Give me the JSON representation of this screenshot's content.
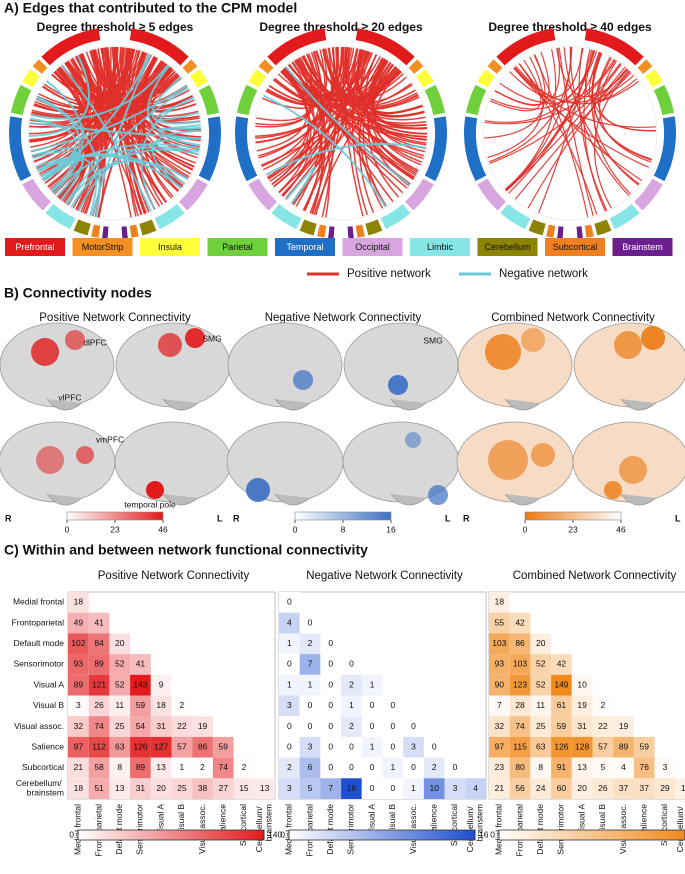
{
  "panel_a": {
    "title": "A)  Edges that contributed to the CPM model",
    "plots": [
      {
        "title": "Degree threshold  ≥  5 edges"
      },
      {
        "title": "Degree threshold  ≥  20 edges"
      },
      {
        "title": "Degree threshold ≥ 40 edges"
      }
    ],
    "legend": [
      {
        "name": "Prefrontal",
        "color": "#e31a1c"
      },
      {
        "name": "MotorStrip",
        "color": "#f39021"
      },
      {
        "name": "Insula",
        "color": "#ffff3a"
      },
      {
        "name": "Parietal",
        "color": "#6fd03c"
      },
      {
        "name": "Temporal",
        "color": "#1f6fc6"
      },
      {
        "name": "Occipital",
        "color": "#d8a6df"
      },
      {
        "name": "Limbic",
        "color": "#86e6e6"
      },
      {
        "name": "Cerebellum",
        "color": "#8c8400"
      },
      {
        "name": "Subcortical",
        "color": "#f0801f"
      },
      {
        "name": "Brainstem",
        "color": "#6b1f8f"
      }
    ],
    "network_legend": [
      {
        "name": "Positive network",
        "color": "#e0302a"
      },
      {
        "name": "Negative network",
        "color": "#6ccad8"
      }
    ]
  },
  "panel_b": {
    "title": "B)  Connectivity nodes",
    "maps": [
      {
        "title": "Positive Network Connectivity",
        "labels": [
          "dlPFC",
          "SMG",
          "vlPFC",
          "vmPFC",
          "temporal pole"
        ],
        "sides": [
          "R",
          "L"
        ],
        "colorbar": {
          "lim": [
            0,
            46
          ],
          "ticks": [
            0,
            23,
            46
          ],
          "colors": [
            "#ffffff",
            "#e31a1c"
          ]
        }
      },
      {
        "title": "Negative Network Connectivity",
        "labels": [
          "SMG"
        ],
        "sides": [
          "R",
          "L"
        ],
        "colorbar": {
          "lim": [
            0,
            16
          ],
          "ticks": [
            0,
            8,
            16
          ],
          "colors": [
            "#ffffff",
            "#3a6fc4"
          ]
        }
      },
      {
        "title": "Combined Network Connectivity",
        "labels": [],
        "sides": [
          "R",
          "L"
        ],
        "colorbar": {
          "lim": [
            0,
            46
          ],
          "ticks": [
            0,
            23,
            46
          ],
          "colors": [
            "#ed7a12",
            "#ffffff"
          ]
        }
      }
    ]
  },
  "panel_c": {
    "title": "C)  Within and between network functional connectivity"
  },
  "chart_data": [
    {
      "type": "heatmap",
      "title": "Positive Network Connectivity",
      "categories": [
        "Medial frontal",
        "Frontoparietal",
        "Default mode",
        "Sensorimotor",
        "Visual A",
        "Visual B",
        "Visual assoc.",
        "Salience",
        "Subcortical",
        "Cerebellum/ brainstem"
      ],
      "values": [
        [
          18
        ],
        [
          49,
          41
        ],
        [
          102,
          84,
          20
        ],
        [
          93,
          89,
          52,
          41
        ],
        [
          89,
          121,
          52,
          143,
          9
        ],
        [
          3,
          26,
          11,
          59,
          18,
          2
        ],
        [
          32,
          74,
          25,
          54,
          31,
          22,
          19
        ],
        [
          97,
          112,
          63,
          126,
          127,
          57,
          86,
          59
        ],
        [
          21,
          58,
          8,
          89,
          13,
          1,
          2,
          74,
          2
        ],
        [
          18,
          51,
          13,
          31,
          20,
          25,
          38,
          27,
          15,
          13
        ]
      ],
      "clim": [
        0,
        140
      ],
      "cticks": [
        0,
        140
      ],
      "colors": [
        "#ffffff",
        "#e31a1c"
      ]
    },
    {
      "type": "heatmap",
      "title": "Negative Network Connectivity",
      "categories": [
        "Medial frontal",
        "Frontoparietal",
        "Default mode",
        "Sensorimotor",
        "Visual A",
        "Visual B",
        "Visual assoc.",
        "Salience",
        "Subcortical",
        "Cerebellum/ brainstem"
      ],
      "values": [
        [
          0
        ],
        [
          4,
          0
        ],
        [
          1,
          2,
          0
        ],
        [
          0,
          7,
          0,
          0
        ],
        [
          1,
          1,
          0,
          2,
          1
        ],
        [
          3,
          0,
          0,
          1,
          0,
          0
        ],
        [
          0,
          0,
          0,
          2,
          0,
          0,
          0
        ],
        [
          0,
          3,
          0,
          0,
          1,
          0,
          3,
          0
        ],
        [
          2,
          6,
          0,
          0,
          0,
          1,
          0,
          2,
          0
        ],
        [
          3,
          5,
          7,
          16,
          0,
          0,
          1,
          10,
          3,
          4
        ]
      ],
      "clim": [
        0,
        16
      ],
      "cticks": [
        0,
        16
      ],
      "colors": [
        "#ffffff",
        "#1f4fd1"
      ]
    },
    {
      "type": "heatmap",
      "title": "Combined Network Connectivity",
      "categories": [
        "Medial frontal",
        "Frontoparietal",
        "Default mode",
        "Sensorimotor",
        "Visual A",
        "Visual B",
        "Visual assoc.",
        "Salience",
        "Subcortical",
        "Cerebellum/ brainstem"
      ],
      "values": [
        [
          18
        ],
        [
          55,
          42
        ],
        [
          103,
          86,
          20
        ],
        [
          93,
          103,
          52,
          42
        ],
        [
          90,
          123,
          52,
          149,
          10
        ],
        [
          7,
          28,
          11,
          61,
          19,
          2
        ],
        [
          32,
          74,
          25,
          59,
          31,
          22,
          19
        ],
        [
          97,
          115,
          63,
          126,
          128,
          57,
          89,
          59
        ],
        [
          23,
          80,
          8,
          91,
          13,
          5,
          4,
          76,
          3
        ],
        [
          21,
          56,
          24,
          60,
          20,
          26,
          37,
          37,
          29,
          17
        ]
      ],
      "clim": [
        0,
        140
      ],
      "cticks": [
        0,
        140
      ],
      "colors": [
        "#ffffff",
        "#f08a1c"
      ]
    }
  ]
}
